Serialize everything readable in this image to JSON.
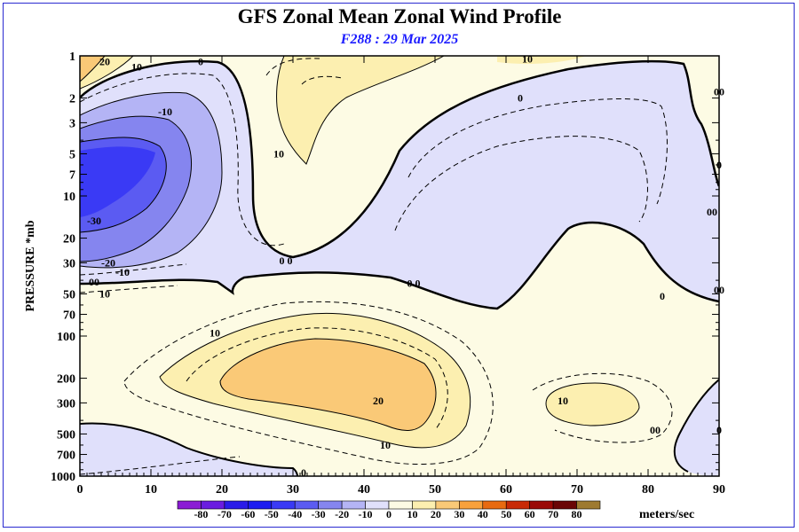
{
  "title": "GFS Zonal Mean Zonal Wind Profile",
  "subtitle": "F288 : 29 Mar 2025",
  "ylabel": "PRESSURE *mb",
  "units_label": "meters/sec",
  "chart_data": {
    "type": "contour",
    "title": "GFS Zonal Mean Zonal Wind Profile",
    "subtitle": "F288 : 29 Mar 2025",
    "xlabel": "",
    "ylabel": "PRESSURE *mb",
    "x_range": [
      0,
      90
    ],
    "y_range_mb": [
      1000,
      1
    ],
    "y_scale": "log",
    "x_ticks": [
      0,
      10,
      20,
      30,
      40,
      50,
      60,
      70,
      80,
      90
    ],
    "y_ticks": [
      1,
      2,
      3,
      5,
      7,
      10,
      20,
      30,
      50,
      70,
      100,
      200,
      300,
      500,
      700,
      1000
    ],
    "contour_labels": [
      {
        "text": "20",
        "x": 3.5,
        "p": 1.1
      },
      {
        "text": "10",
        "x": 8,
        "p": 1.2
      },
      {
        "text": "0",
        "x": 17,
        "p": 1.1
      },
      {
        "text": "-10",
        "x": 12,
        "p": 2.5
      },
      {
        "text": "-30",
        "x": 2,
        "p": 15
      },
      {
        "text": "-20",
        "x": 4,
        "p": 30
      },
      {
        "text": "-10",
        "x": 6,
        "p": 35
      },
      {
        "text": "00",
        "x": 2,
        "p": 41
      },
      {
        "text": "10",
        "x": 3.5,
        "p": 50
      },
      {
        "text": "10",
        "x": 28,
        "p": 5
      },
      {
        "text": "10",
        "x": 63,
        "p": 1.05
      },
      {
        "text": "0",
        "x": 62,
        "p": 2
      },
      {
        "text": "0 0",
        "x": 29,
        "p": 29
      },
      {
        "text": "0 0",
        "x": 47,
        "p": 42
      },
      {
        "text": "0",
        "x": 82,
        "p": 52
      },
      {
        "text": "00",
        "x": 90,
        "p": 1.8
      },
      {
        "text": "0",
        "x": 90,
        "p": 6
      },
      {
        "text": "00",
        "x": 89,
        "p": 13
      },
      {
        "text": "00",
        "x": 90,
        "p": 47
      },
      {
        "text": "10",
        "x": 19,
        "p": 95
      },
      {
        "text": "20",
        "x": 42,
        "p": 290
      },
      {
        "text": "10",
        "x": 43,
        "p": 600
      },
      {
        "text": "10",
        "x": 68,
        "p": 290
      },
      {
        "text": "00",
        "x": 81,
        "p": 470
      },
      {
        "text": "0",
        "x": 90,
        "p": 470
      },
      {
        "text": "0",
        "x": 31.5,
        "p": 940
      }
    ],
    "colorbar": {
      "levels": [
        -80,
        -70,
        -60,
        -50,
        -40,
        -30,
        -20,
        -10,
        0,
        10,
        20,
        30,
        40,
        50,
        60,
        70,
        80
      ],
      "colors": [
        "#8b1cd4",
        "#6a1ce0",
        "#2a1ce8",
        "#1c1cf0",
        "#3a3af5",
        "#5b5bf2",
        "#8585ef",
        "#b4b4f5",
        "#e0e0fb",
        "#fdfbe4",
        "#fcefb0",
        "#fac977",
        "#f8a13c",
        "#e86a10",
        "#c82a06",
        "#9a0a06",
        "#6a0606",
        "#9e7a30"
      ],
      "units": "meters/sec"
    }
  }
}
